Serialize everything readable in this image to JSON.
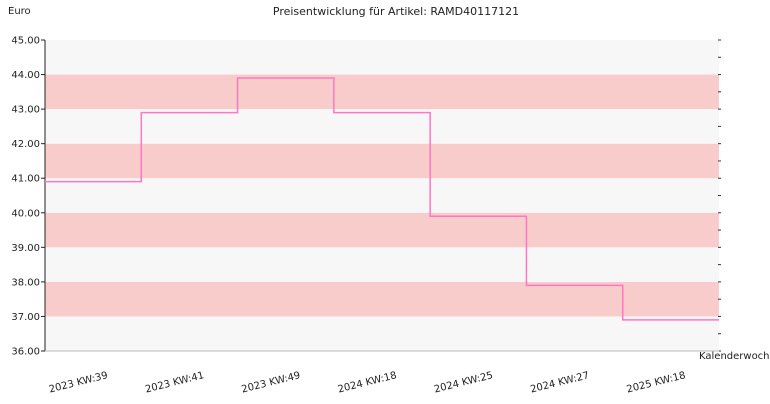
{
  "chart_data": {
    "type": "line",
    "title": "Preisentwicklung für Artikel: RAMD40117121",
    "ylabel": "Euro",
    "xlabel": "Kalenderwoche",
    "ylim": [
      36.0,
      45.0
    ],
    "yticks": [
      "36.00",
      "37.00",
      "38.00",
      "39.00",
      "40.00",
      "41.00",
      "42.00",
      "43.00",
      "44.00",
      "45.00"
    ],
    "categories": [
      "2023 KW:39",
      "2023 KW:41",
      "2023 KW:49",
      "2024 KW:18",
      "2024 KW:25",
      "2024 KW:27",
      "2025 KW:18"
    ],
    "step": true,
    "series": [
      {
        "values": [
          40.9,
          42.9,
          43.9,
          42.9,
          39.9,
          37.9,
          36.9
        ]
      }
    ],
    "grid": "alternating horizontal bands",
    "colors": {
      "line": "#ff77c4",
      "band_light": "#f7f7f7",
      "band_dark": "#f9cccc",
      "axis": "#222222"
    }
  }
}
